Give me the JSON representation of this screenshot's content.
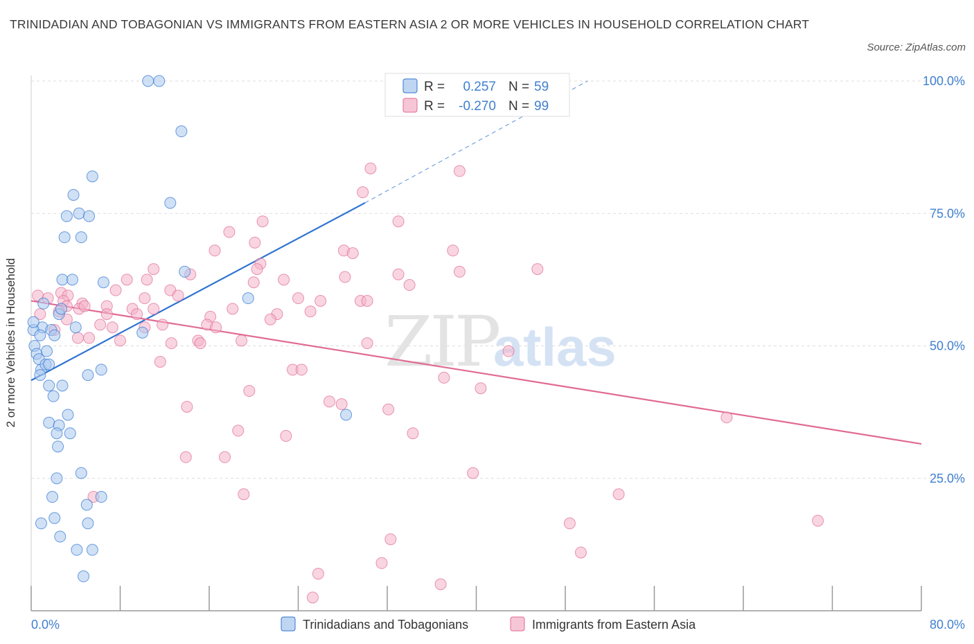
{
  "header": {
    "title": "TRINIDADIAN AND TOBAGONIAN VS IMMIGRANTS FROM EASTERN ASIA 2 OR MORE VEHICLES IN HOUSEHOLD CORRELATION CHART",
    "source": "Source: ZipAtlas.com"
  },
  "watermark": {
    "zip": "ZIP",
    "atlas": "atlas"
  },
  "colors": {
    "blue": "#2f74d0",
    "blue_fill": "#aac8ef",
    "pink": "#e06a94",
    "pink_fill": "#f4b3c8",
    "axis_label": "#3f7fcf",
    "grid": "#dddddd"
  },
  "chart_data": {
    "type": "scatter",
    "xlabel": "",
    "ylabel": "2 or more Vehicles in Household",
    "xlim": [
      0,
      80
    ],
    "ylim": [
      0,
      100
    ],
    "x_ticks": [
      "0.0%",
      "80.0%"
    ],
    "y_ticks": [
      "25.0%",
      "50.0%",
      "75.0%",
      "100.0%"
    ],
    "legend": {
      "placement": "top-center",
      "rows": [
        {
          "r_label": "R =",
          "r_value": "0.257",
          "n_label": "N =",
          "n_value": "59"
        },
        {
          "r_label": "R =",
          "r_value": "-0.270",
          "n_label": "N =",
          "n_value": "99"
        }
      ]
    },
    "bottom_legend": [
      "Trinidadians and Tobagonians",
      "Immigrants from Eastern Asia"
    ],
    "series": [
      {
        "name": "Trinidadians and Tobagonians",
        "color": "#2f74d0",
        "trend": {
          "x0": 0,
          "y0": 43.5,
          "x1": 30,
          "y1": 77,
          "dash_to_x": 50,
          "dash_to_y": 100
        },
        "points": [
          [
            10.5,
            100
          ],
          [
            11.5,
            100
          ],
          [
            13.5,
            90.5
          ],
          [
            5.5,
            82
          ],
          [
            12.5,
            77
          ],
          [
            3.8,
            78.5
          ],
          [
            3.2,
            74.5
          ],
          [
            4.3,
            75
          ],
          [
            5.2,
            74.5
          ],
          [
            3,
            70.5
          ],
          [
            4.5,
            70.5
          ],
          [
            13.8,
            64
          ],
          [
            2.8,
            62.5
          ],
          [
            3.7,
            62.5
          ],
          [
            6.5,
            62
          ],
          [
            19.5,
            59
          ],
          [
            2.5,
            56
          ],
          [
            2.7,
            57
          ],
          [
            1,
            53.5
          ],
          [
            0.2,
            53
          ],
          [
            1.8,
            53
          ],
          [
            4,
            53.5
          ],
          [
            0.8,
            52
          ],
          [
            2.1,
            52
          ],
          [
            10,
            52.5
          ],
          [
            0.3,
            50
          ],
          [
            0.5,
            48.5
          ],
          [
            0.7,
            47.5
          ],
          [
            0.9,
            45.5
          ],
          [
            1.4,
            49
          ],
          [
            1.3,
            46.5
          ],
          [
            1.6,
            46.5
          ],
          [
            0.8,
            44.5
          ],
          [
            6.3,
            45.5
          ],
          [
            5.1,
            44.5
          ],
          [
            1.6,
            42.5
          ],
          [
            2.8,
            42.5
          ],
          [
            2,
            40.5
          ],
          [
            3.3,
            37
          ],
          [
            28.3,
            37
          ],
          [
            1.6,
            35.5
          ],
          [
            2.5,
            35
          ],
          [
            2.3,
            33.5
          ],
          [
            3.5,
            33.5
          ],
          [
            2.4,
            31
          ],
          [
            4.5,
            26
          ],
          [
            2.3,
            25
          ],
          [
            1.9,
            21.5
          ],
          [
            6.3,
            21.5
          ],
          [
            5,
            20
          ],
          [
            2.1,
            17.5
          ],
          [
            0.9,
            16.5
          ],
          [
            5.1,
            16.5
          ],
          [
            2.6,
            14
          ],
          [
            4.1,
            11.5
          ],
          [
            5.5,
            11.5
          ],
          [
            4.7,
            6.5
          ],
          [
            0.2,
            54.5
          ],
          [
            1.1,
            58
          ]
        ]
      },
      {
        "name": "Immigrants from Eastern Asia",
        "color": "#e06a94",
        "trend": {
          "x0": 0,
          "y0": 58.5,
          "x1": 80,
          "y1": 31.5
        },
        "points": [
          [
            43,
            100
          ],
          [
            30.5,
            83.5
          ],
          [
            38.5,
            83
          ],
          [
            29.8,
            79
          ],
          [
            20.8,
            73.5
          ],
          [
            33,
            73.5
          ],
          [
            17.8,
            71.5
          ],
          [
            20.1,
            69.5
          ],
          [
            16.5,
            68
          ],
          [
            28.1,
            68
          ],
          [
            37.9,
            68
          ],
          [
            28.9,
            67.5
          ],
          [
            20.6,
            65.5
          ],
          [
            11,
            64.5
          ],
          [
            20.3,
            64.5
          ],
          [
            14.3,
            63.5
          ],
          [
            33,
            63.5
          ],
          [
            38.5,
            64
          ],
          [
            28.2,
            63
          ],
          [
            45.5,
            64.5
          ],
          [
            10.4,
            62.5
          ],
          [
            8.6,
            62.5
          ],
          [
            22.7,
            62.5
          ],
          [
            20,
            62
          ],
          [
            34,
            61.5
          ],
          [
            7.6,
            60.5
          ],
          [
            12.5,
            60.5
          ],
          [
            13.2,
            59.5
          ],
          [
            2.7,
            60
          ],
          [
            0.6,
            59.5
          ],
          [
            3.3,
            59.5
          ],
          [
            1.5,
            59
          ],
          [
            2.9,
            58.5
          ],
          [
            10.2,
            59
          ],
          [
            24,
            59
          ],
          [
            26,
            58.5
          ],
          [
            29.6,
            58.5
          ],
          [
            30.2,
            58.5
          ],
          [
            4.6,
            58
          ],
          [
            3.2,
            57.5
          ],
          [
            6.8,
            57.5
          ],
          [
            18.1,
            57
          ],
          [
            11,
            57
          ],
          [
            9.1,
            57
          ],
          [
            4.3,
            57
          ],
          [
            4.8,
            57.5
          ],
          [
            2.5,
            56.5
          ],
          [
            0.8,
            56
          ],
          [
            6.8,
            56
          ],
          [
            9.5,
            56
          ],
          [
            25.1,
            56.5
          ],
          [
            22.1,
            56
          ],
          [
            16.1,
            55.5
          ],
          [
            3.2,
            55
          ],
          [
            21.5,
            55
          ],
          [
            11.8,
            54
          ],
          [
            6.2,
            54
          ],
          [
            15.8,
            54
          ],
          [
            10.2,
            53.5
          ],
          [
            16.6,
            53.5
          ],
          [
            7.3,
            53.5
          ],
          [
            2.1,
            53
          ],
          [
            5.2,
            51.5
          ],
          [
            4.2,
            51.5
          ],
          [
            8,
            51
          ],
          [
            12.6,
            50.5
          ],
          [
            15,
            51
          ],
          [
            15.2,
            50.5
          ],
          [
            18.9,
            51
          ],
          [
            30.2,
            50.5
          ],
          [
            42.9,
            49
          ],
          [
            11.6,
            47
          ],
          [
            23.5,
            45.5
          ],
          [
            24.3,
            45.5
          ],
          [
            37.1,
            44
          ],
          [
            40.4,
            42
          ],
          [
            19.6,
            41.5
          ],
          [
            26.8,
            39.5
          ],
          [
            27.9,
            39
          ],
          [
            14,
            38.5
          ],
          [
            32.1,
            38
          ],
          [
            62.5,
            36.5
          ],
          [
            18.6,
            34
          ],
          [
            22.9,
            33
          ],
          [
            34.3,
            33.5
          ],
          [
            13.9,
            29
          ],
          [
            17.4,
            29
          ],
          [
            39.7,
            26
          ],
          [
            5.6,
            21.5
          ],
          [
            19.1,
            22
          ],
          [
            52.8,
            22
          ],
          [
            70.7,
            17
          ],
          [
            48.4,
            16.5
          ],
          [
            32.3,
            13.5
          ],
          [
            49.4,
            11
          ],
          [
            31.5,
            9
          ],
          [
            25.8,
            7
          ],
          [
            36.8,
            5
          ],
          [
            25.3,
            2.5
          ]
        ]
      }
    ]
  }
}
